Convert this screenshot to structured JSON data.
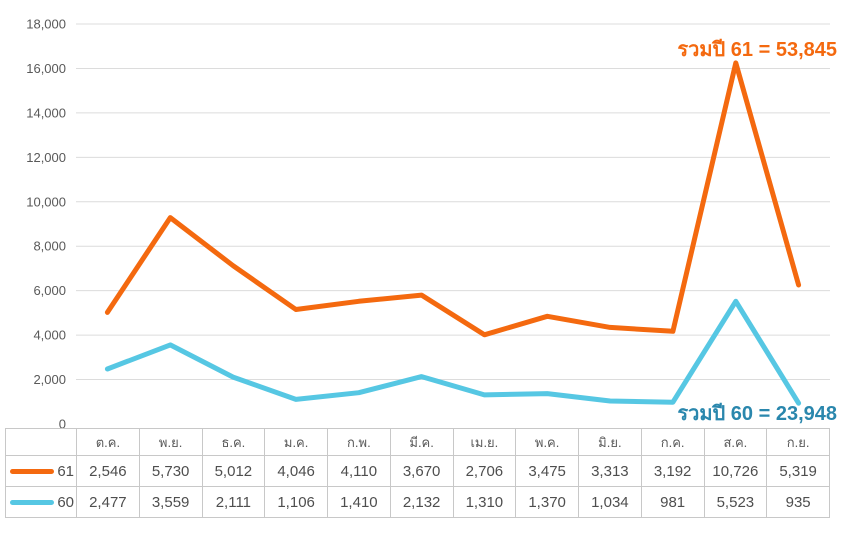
{
  "colors": {
    "background": "#FFFFFF",
    "grid_line": "#DCDCDC",
    "axis_text": "#595959",
    "table_border": "#C8C8C8",
    "table_text": "#4E4E4E",
    "series_61": "#F4690F",
    "series_60": "#56C7E3",
    "annotation_61": "#F4690F",
    "annotation_60": "#2A87AD"
  },
  "chart_data": {
    "type": "line",
    "stacked": true,
    "grid": "horizontal",
    "legend_position": "table-left",
    "categories": [
      "ต.ค.",
      "พ.ย.",
      "ธ.ค.",
      "ม.ค.",
      "ก.พ.",
      "มี.ค.",
      "เม.ย.",
      "พ.ค.",
      "มิ.ย.",
      "ก.ค.",
      "ส.ค.",
      "ก.ย."
    ],
    "series": [
      {
        "name": "61",
        "color": "#F4690F",
        "values": [
          2546,
          5730,
          5012,
          4046,
          4110,
          3670,
          2706,
          3475,
          3313,
          3192,
          10726,
          5319
        ],
        "total": 53845
      },
      {
        "name": "60",
        "color": "#56C7E3",
        "values": [
          2477,
          3559,
          2111,
          1106,
          1410,
          2132,
          1310,
          1370,
          1034,
          981,
          5523,
          935
        ],
        "total": 23948
      }
    ],
    "ylim": [
      0,
      18000
    ],
    "ytick_step": 2000,
    "ytick_labels": [
      "0",
      "2,000",
      "4,000",
      "6,000",
      "8,000",
      "10,000",
      "12,000",
      "14,000",
      "16,000",
      "18,000"
    ],
    "xlabel": "",
    "ylabel": "",
    "title": "",
    "annotations": [
      {
        "text": "รวมปี 61 = 53,845",
        "color": "#F4690F"
      },
      {
        "text": "รวมปี 60 = 23,948",
        "color": "#2A87AD"
      }
    ]
  },
  "table": {
    "legend_header": ""
  }
}
